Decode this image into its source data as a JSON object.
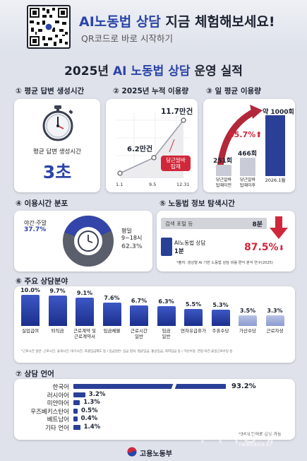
{
  "banner": {
    "headline_em": "AI노동법 상담",
    "headline_rest": "지금 체험해보세요!",
    "subline": "QR코드로 바로 시작하기"
  },
  "main_title": {
    "year": "2025년",
    "em": "AI 노동법 상담",
    "rest": "운영 실적"
  },
  "s1": {
    "num": "①",
    "title": "평균 답변 생성시간",
    "label": "평균 답변 생성시간",
    "value": "3초"
  },
  "s2": {
    "num": "②",
    "title": "2025년 누적 이용량",
    "points": [
      {
        "x": "1.1",
        "label": ""
      },
      {
        "x": "9.5",
        "label": "6.2만건"
      },
      {
        "x": "12.31",
        "label": "11.7만건"
      }
    ],
    "callout": "당근알바\n탑재"
  },
  "s3": {
    "num": "③",
    "title": "일 평균 이용량",
    "bars": [
      {
        "value": "251회",
        "label": "당근알바\n탑재이전"
      },
      {
        "value": "466회",
        "label": "당근알바\n탑재이후"
      },
      {
        "value": "약 1000회",
        "label": "2026.1월"
      }
    ],
    "growth": "85.7%"
  },
  "s4": {
    "num": "④",
    "title": "이용시간 분포",
    "seg1_label": "야간·주말",
    "seg1_value": "37.7%",
    "seg2_label": "평일\n9~18시",
    "seg2_value": "62.3%"
  },
  "s5": {
    "num": "⑤",
    "title": "노동법 정보 탐색시간",
    "row1_label": "검색 포털 등",
    "row1_value": "8분",
    "row2_label": "AI노동법 상담",
    "row2_value": "1분",
    "reduction": "87.5%",
    "footnote": "*출처: 생성형 AI 기반 노동법 상담 비용 편익 분석 연구(2025)"
  },
  "s6": {
    "num": "⑥",
    "title": "주요 상담분야",
    "bars": [
      {
        "value": "10.0%",
        "label": "실업급여"
      },
      {
        "value": "9.7%",
        "label": "퇴직금"
      },
      {
        "value": "9.1%",
        "label": "근로계약 및\n근로계약서"
      },
      {
        "value": "7.6%",
        "label": "임금체불"
      },
      {
        "value": "6.7%",
        "label": "근로시간\n일반"
      },
      {
        "value": "6.3%",
        "label": "임금\n일반"
      },
      {
        "value": "5.5%",
        "label": "연차유급휴가"
      },
      {
        "value": "5.3%",
        "label": "주휴수당"
      },
      {
        "value": "3.5%",
        "label": "가산수당"
      },
      {
        "value": "3.3%",
        "label": "근로자성"
      }
    ],
    "note": "*근로시간 일반: 근로시간, 휴게시간, 대기시간, 포괄임금제도 등 / 임금일반: 임금 정의, 평균임금, 통상임금, 최저임금 등 / 가산수당: 연장·야간·휴일근로수당 등"
  },
  "s7": {
    "num": "⑦",
    "title": "상담 언어",
    "bars": [
      {
        "label": "한국어",
        "value": "93.2%"
      },
      {
        "label": "러시아어",
        "value": "3.2%"
      },
      {
        "label": "미얀마어",
        "value": "1.3%"
      },
      {
        "label": "우즈베키스탄어",
        "value": "0.5%"
      },
      {
        "label": "베트남어",
        "value": "0.4%"
      },
      {
        "label": "기타 언어",
        "value": "1.4%"
      }
    ],
    "note": "*34개 언어로 상담 가능"
  },
  "footer": {
    "ministry": "고용노동부",
    "watermark": "아시아경제",
    "watermark_url": "newsasia.kr"
  },
  "chart_data": [
    {
      "type": "line",
      "title": "2025년 누적 이용량",
      "x": [
        "1.1",
        "9.5",
        "12.31"
      ],
      "series": [
        {
          "values": [
            0,
            6.2,
            11.7
          ]
        }
      ],
      "annotations": [
        "당근알바 탑재"
      ]
    },
    {
      "type": "bar",
      "title": "일 평균 이용량",
      "categories": [
        "당근알바 탑재이전",
        "당근알바 탑재이후",
        "2026.1월"
      ],
      "values": [
        251,
        466,
        1000
      ]
    },
    {
      "type": "pie",
      "title": "이용시간 분포",
      "categories": [
        "야간·주말",
        "평일 9~18시"
      ],
      "values": [
        37.7,
        62.3
      ]
    },
    {
      "type": "bar",
      "title": "노동법 정보 탐색시간",
      "categories": [
        "검색 포털 등",
        "AI노동법 상담"
      ],
      "values": [
        8,
        1
      ]
    },
    {
      "type": "bar",
      "title": "주요 상담분야",
      "categories": [
        "실업급여",
        "퇴직금",
        "근로계약 및 근로계약서",
        "임금체불",
        "근로시간 일반",
        "임금 일반",
        "연차유급휴가",
        "주휴수당",
        "가산수당",
        "근로자성"
      ],
      "values": [
        10.0,
        9.7,
        9.1,
        7.6,
        6.7,
        6.3,
        5.5,
        5.3,
        3.5,
        3.3
      ]
    },
    {
      "type": "bar",
      "title": "상담 언어",
      "categories": [
        "한국어",
        "러시아어",
        "미얀마어",
        "우즈베키스탄어",
        "베트남어",
        "기타 언어"
      ],
      "values": [
        93.2,
        3.2,
        1.3,
        0.5,
        0.4,
        1.4
      ]
    }
  ]
}
